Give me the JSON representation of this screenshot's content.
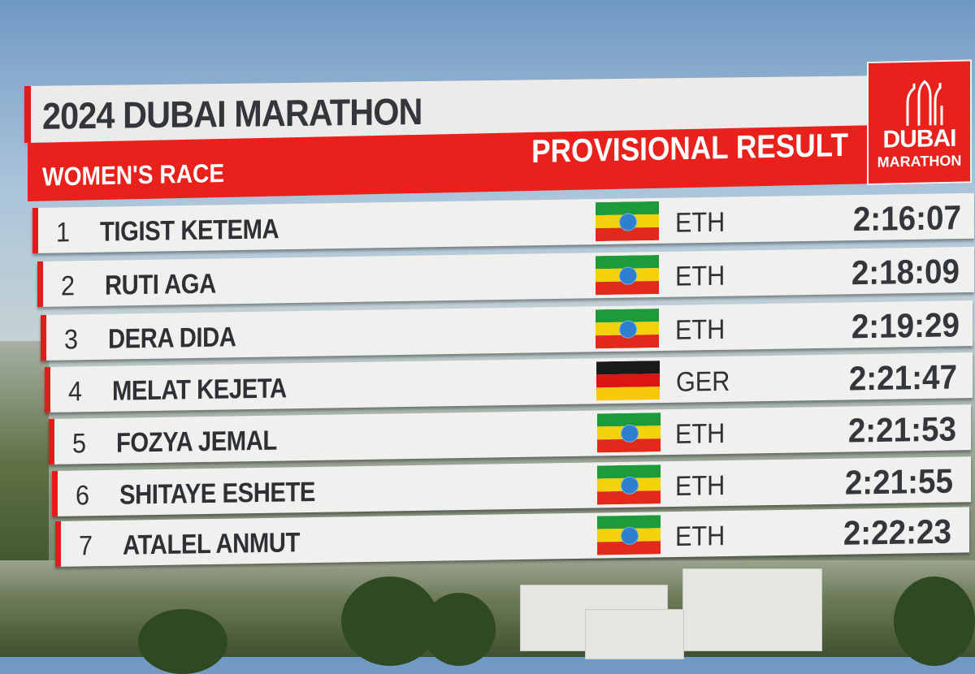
{
  "event": {
    "title": "2024 DUBAI MARATHON",
    "race": "WOMEN'S RACE",
    "status": "PROVISIONAL RESULT"
  },
  "logo": {
    "line1": "DUBAI",
    "line2": "MARATHON",
    "background_color": "#e8211c"
  },
  "colors": {
    "accent_red": "#e31b1b",
    "row_background": "#f0f0ee",
    "text_dark": "#2d3034"
  },
  "flags": {
    "ETH": {
      "stripes": [
        "#1d9a3a",
        "#f3d20c",
        "#e1291c"
      ],
      "emblem": "blue-star-emblem"
    },
    "GER": {
      "stripes": [
        "#1a1a1a",
        "#dd1414",
        "#f7c90a"
      ],
      "emblem": ""
    }
  },
  "results": [
    {
      "rank": "1",
      "name": "TIGIST KETEMA",
      "country": "ETH",
      "time": "2:16:07"
    },
    {
      "rank": "2",
      "name": "RUTI AGA",
      "country": "ETH",
      "time": "2:18:09"
    },
    {
      "rank": "3",
      "name": "DERA DIDA",
      "country": "ETH",
      "time": "2:19:29"
    },
    {
      "rank": "4",
      "name": "MELAT KEJETA",
      "country": "GER",
      "time": "2:21:47"
    },
    {
      "rank": "5",
      "name": "FOZYA JEMAL",
      "country": "ETH",
      "time": "2:21:53"
    },
    {
      "rank": "6",
      "name": "SHITAYE ESHETE",
      "country": "ETH",
      "time": "2:21:55"
    },
    {
      "rank": "7",
      "name": "ATALEL ANMUT",
      "country": "ETH",
      "time": "2:22:23"
    }
  ]
}
